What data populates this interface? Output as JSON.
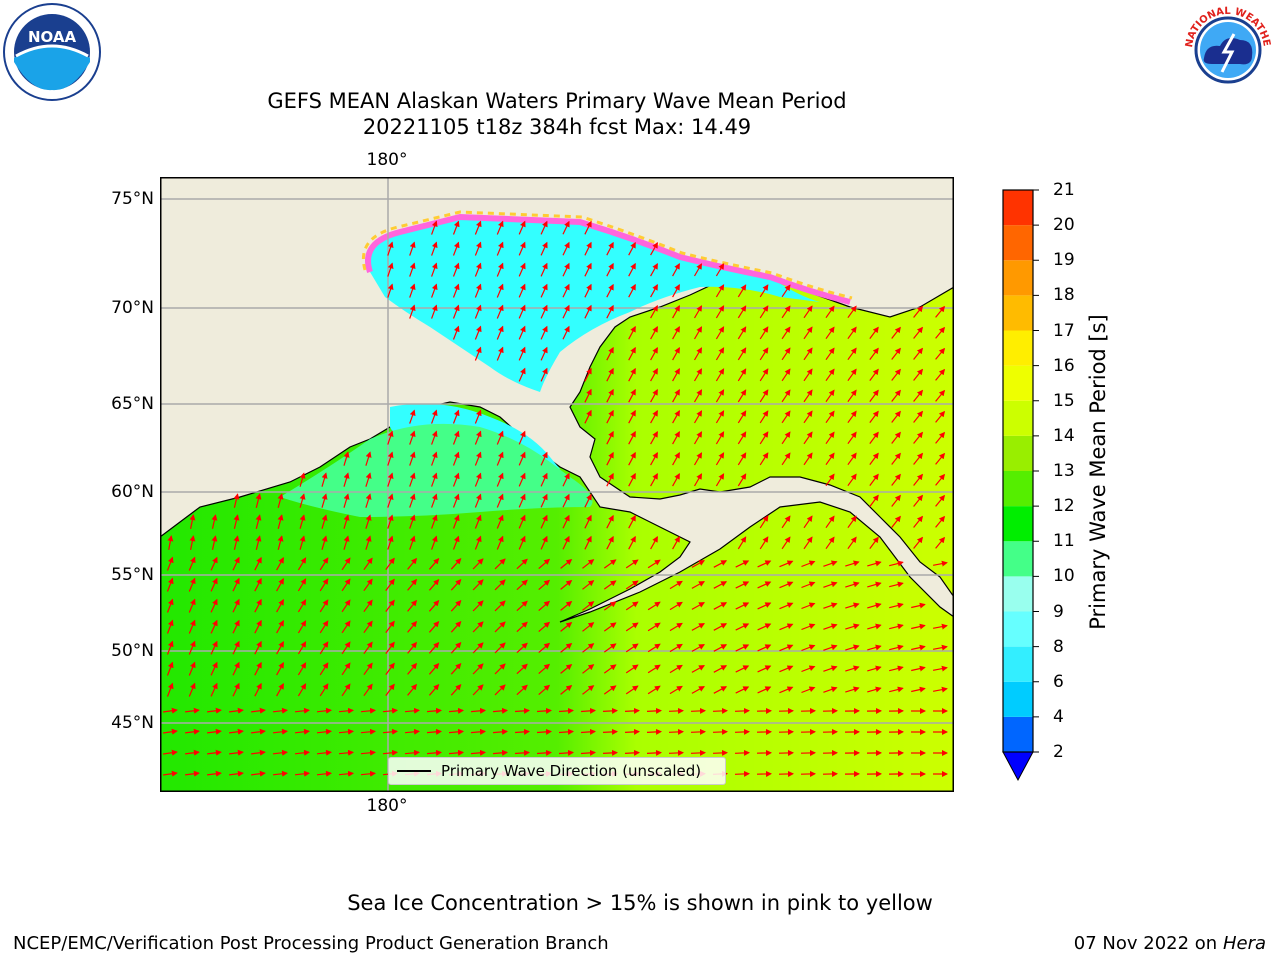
{
  "title": {
    "line1": "GEFS MEAN Alaskan Waters Primary Wave Mean Period",
    "line2": "20221105 t18z 384h fcst   Max: 14.49"
  },
  "logos": {
    "left": {
      "icon": "noaa-logo-icon",
      "text": "NOAA"
    },
    "right": {
      "icon": "nws-logo-icon",
      "text": "NATIONAL WEATHER SERVICE"
    }
  },
  "map": {
    "lat_labels": [
      "75°N",
      "70°N",
      "65°N",
      "60°N",
      "55°N",
      "50°N",
      "45°N"
    ],
    "lon_label_top": "180°",
    "lon_label_bottom": "180°",
    "legend_label": "Primary Wave Direction (unscaled)",
    "colors": {
      "land": "#efecdc",
      "ice": "#ff66dd",
      "arrow": "#ff0000"
    }
  },
  "colorbar": {
    "title": "Primary Wave Mean Period [s]",
    "ticks": [
      "2",
      "4",
      "6",
      "8",
      "9",
      "10",
      "11",
      "12",
      "13",
      "14",
      "15",
      "16",
      "17",
      "18",
      "19",
      "20",
      "21"
    ],
    "colors": [
      "#0066ff",
      "#00ccff",
      "#33eeff",
      "#66ffff",
      "#99ffee",
      "#44ff88",
      "#00ee00",
      "#55ee00",
      "#99ee00",
      "#ccff00",
      "#eeff00",
      "#ffee00",
      "#ffbb00",
      "#ff9900",
      "#ff6600",
      "#ff3300",
      "#ff0000"
    ],
    "extend_color": "#0000ff"
  },
  "footnote": "Sea Ice Concentration > 15% is shown in pink to yellow",
  "footer": {
    "left": "NCEP/EMC/Verification Post Processing Product Generation Branch",
    "right_date": "07 Nov 2022 on",
    "right_host": "Hera"
  }
}
